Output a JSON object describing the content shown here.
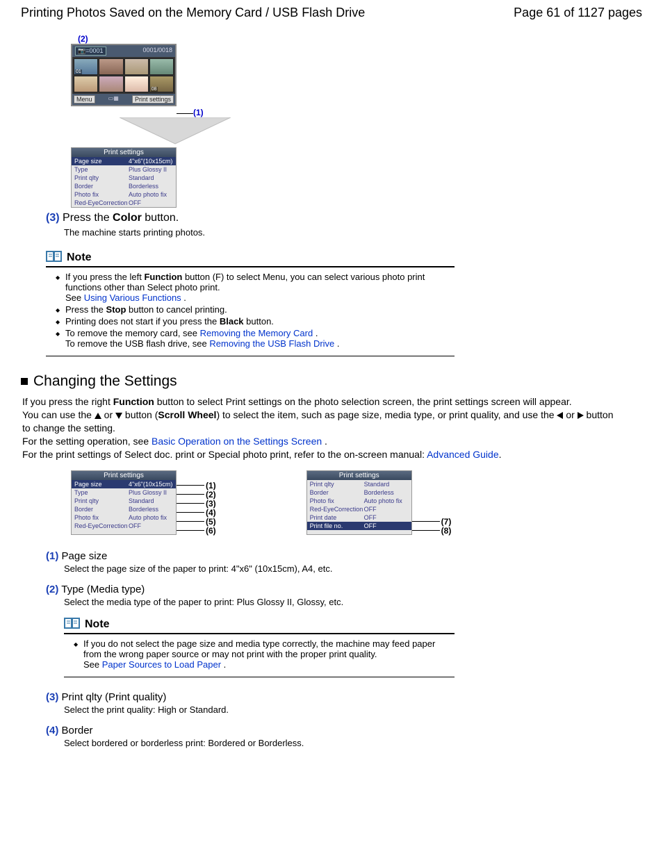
{
  "header": {
    "title": "Printing Photos Saved on the Memory Card / USB Flash Drive",
    "page": "Page 61 of 1127 pages"
  },
  "fig1": {
    "callout2": "(2)",
    "callout1": "(1)",
    "counter_box": "=0001",
    "counter_right": "0001/0018",
    "thumbs": [
      "01",
      "",
      "",
      "",
      "",
      "",
      "",
      "08"
    ],
    "menu_label": "Menu",
    "print_settings_label": "Print settings"
  },
  "panelA": {
    "title": "Print settings",
    "rows": [
      {
        "k": "Page size",
        "v": "4\"x6\"(10x15cm)",
        "sel": true
      },
      {
        "k": "Type",
        "v": "Plus Glossy II"
      },
      {
        "k": "Print qlty",
        "v": "Standard"
      },
      {
        "k": "Border",
        "v": "Borderless"
      },
      {
        "k": "Photo fix",
        "v": "Auto photo fix"
      },
      {
        "k": "Red-EyeCorrection",
        "v": "OFF"
      }
    ]
  },
  "step3": {
    "num": "(3)",
    "pre": "Press the ",
    "b": "Color",
    "post": " button.",
    "sub": "The machine starts printing photos."
  },
  "note1": {
    "title": "Note",
    "li1": {
      "a": "If you press the left ",
      "b": "Function",
      "c": " button (F) to select Menu, you can select various photo print functions other than Select photo print.",
      "see": "See ",
      "link": "Using Various Functions",
      "dot": " ."
    },
    "li2": {
      "a": "Press the ",
      "b": "Stop",
      "c": " button to cancel printing."
    },
    "li3": {
      "a": "Printing does not start if you press the ",
      "b": "Black",
      "c": " button."
    },
    "li4": {
      "a": "To remove the memory card, see ",
      "link1": "Removing the Memory Card",
      "d1": " .",
      "b": "To remove the USB flash drive, see ",
      "link2": "Removing the USB Flash Drive",
      "d2": " ."
    }
  },
  "section2": {
    "title": "Changing the Settings"
  },
  "para": {
    "p1a": "If you press the right ",
    "p1b": "Function",
    "p1c": " button to select Print settings on the photo selection screen, the print settings screen will appear.",
    "p2a": "You can use the ",
    "p2b": " or ",
    "p2c": " button (",
    "p2d": "Scroll Wheel",
    "p2e": ") to select the item, such as page size, media type, or print quality, and use the ",
    "p2f": " or ",
    "p2g": " button to change the setting.",
    "p3a": "For the setting operation, see ",
    "p3link": "Basic Operation on the Settings Screen",
    "p3b": " .",
    "p4a": "For the print settings of Select doc. print or Special photo print, refer to the on-screen manual: ",
    "p4link": "Advanced Guide",
    "p4b": "."
  },
  "panelB": {
    "title": "Print settings",
    "rows": [
      {
        "k": "Page size",
        "v": "4\"x6\"(10x15cm)",
        "sel": true
      },
      {
        "k": "Type",
        "v": "Plus Glossy II"
      },
      {
        "k": "Print qlty",
        "v": "Standard"
      },
      {
        "k": "Border",
        "v": "Borderless"
      },
      {
        "k": "Photo fix",
        "v": "Auto photo fix"
      },
      {
        "k": "Red-EyeCorrection",
        "v": "OFF"
      }
    ],
    "leaders": [
      "(1)",
      "(2)",
      "(3)",
      "(4)",
      "(5)",
      "(6)"
    ]
  },
  "panelC": {
    "title": "Print settings",
    "rows": [
      {
        "k": "Print qlty",
        "v": "Standard"
      },
      {
        "k": "Border",
        "v": "Borderless"
      },
      {
        "k": "Photo fix",
        "v": "Auto photo fix"
      },
      {
        "k": "Red-EyeCorrection",
        "v": "OFF"
      },
      {
        "k": "Print date",
        "v": "OFF"
      },
      {
        "k": "Print file no.",
        "v": "OFF",
        "sel": true
      }
    ],
    "leaders": [
      "(7)",
      "(8)"
    ]
  },
  "items": {
    "i1": {
      "num": "(1)",
      "title": "Page size",
      "sub": "Select the page size of the paper to print: 4\"x6\" (10x15cm), A4, etc."
    },
    "i2": {
      "num": "(2)",
      "title": "Type (Media type)",
      "sub": "Select the media type of the paper to print: Plus Glossy II, Glossy, etc."
    },
    "i3": {
      "num": "(3)",
      "title": "Print qlty (Print quality)",
      "sub": "Select the print quality: High or Standard."
    },
    "i4": {
      "num": "(4)",
      "title": "Border",
      "sub": "Select bordered or borderless print: Bordered or Borderless."
    }
  },
  "note2": {
    "title": "Note",
    "li": {
      "a": "If you do not select the page size and media type correctly, the machine may feed paper from the wrong paper source or may not print with the proper print quality.",
      "see": "See ",
      "link": "Paper Sources to Load Paper",
      "dot": " ."
    }
  },
  "colors": {
    "link": "#0033cc",
    "num": "#1a3fb5",
    "panel_sel": "#2a3a70"
  }
}
